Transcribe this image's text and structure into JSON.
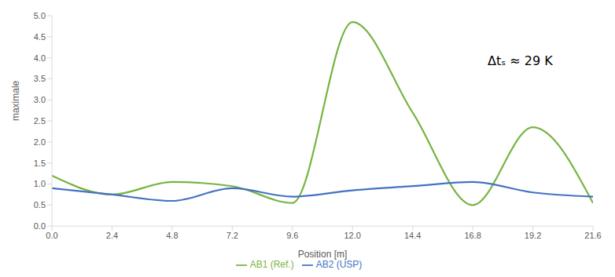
{
  "chart_data": {
    "type": "line",
    "x_label": "Position [m]",
    "y_label": "maximale",
    "annotation": "Δtₛ ≈ 29 K",
    "x": [
      0,
      2.4,
      4.8,
      7.2,
      9.6,
      12.0,
      14.4,
      16.8,
      19.2,
      21.6
    ],
    "xlim": [
      0,
      21.6
    ],
    "xticks": [
      {
        "value": 0,
        "label": "0.0"
      },
      2.4,
      4.8,
      7.2,
      9.6,
      {
        "value": 12,
        "label": "12.0"
      },
      14.4,
      16.8,
      19.2,
      21.6
    ],
    "ylim": [
      0,
      5
    ],
    "yticks": [
      {
        "value": 0,
        "label": "0.0"
      },
      0.5,
      {
        "value": 1,
        "label": "1.0"
      },
      1.5,
      {
        "value": 2,
        "label": "2.0"
      },
      2.5,
      {
        "value": 3,
        "label": "3.0"
      },
      3.5,
      {
        "value": 4,
        "label": "4.0"
      },
      4.5,
      {
        "value": 5,
        "label": "5.0"
      }
    ],
    "grid": false,
    "legend": "bottom",
    "marker": "none",
    "line_style": "solid",
    "series": [
      {
        "name": "AB1 (Ref.)",
        "color": "#77b443",
        "values": [
          1.2,
          0.75,
          1.05,
          0.95,
          0.55,
          4.85,
          2.7,
          0.5,
          2.35,
          0.55
        ]
      },
      {
        "name": "AB2 (USP)",
        "color": "#4472c4",
        "values": [
          0.9,
          0.75,
          0.6,
          0.9,
          0.7,
          0.85,
          0.95,
          1.05,
          0.8,
          0.7
        ]
      }
    ]
  }
}
